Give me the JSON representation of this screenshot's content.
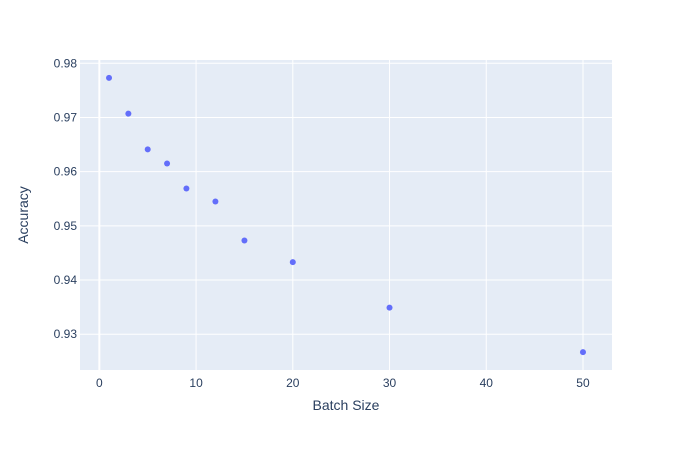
{
  "chart_data": {
    "type": "scatter",
    "title": "",
    "xlabel": "Batch Size",
    "ylabel": "Accuracy",
    "xlim": [
      -2,
      53
    ],
    "ylim": [
      0.9234,
      0.9806
    ],
    "x_ticks": [
      0,
      10,
      20,
      30,
      40,
      50
    ],
    "y_ticks": [
      0.93,
      0.94,
      0.95,
      0.96,
      0.97,
      0.98
    ],
    "x_tick_labels": [
      "0",
      "10",
      "20",
      "30",
      "40",
      "50"
    ],
    "y_tick_labels": [
      "0.93",
      "0.94",
      "0.95",
      "0.96",
      "0.97",
      "0.98"
    ],
    "grid": true,
    "legend": false,
    "series": [
      {
        "color": "#636efa",
        "x": [
          1,
          3,
          5,
          7,
          9,
          12,
          15,
          20,
          30,
          50
        ],
        "y": [
          0.9773,
          0.9707,
          0.9641,
          0.9615,
          0.9569,
          0.9545,
          0.9473,
          0.9433,
          0.9349,
          0.9267
        ]
      }
    ],
    "background_color": "#e5ecf6",
    "grid_color": "#ffffff"
  }
}
